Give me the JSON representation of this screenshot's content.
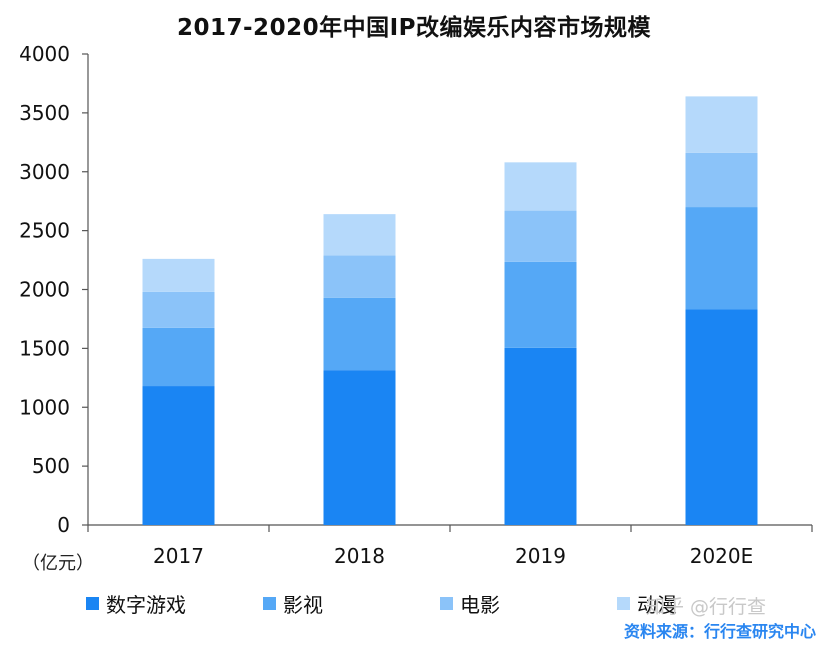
{
  "chart_data": {
    "type": "bar",
    "stacked": true,
    "title": "2017-2020年中国IP改编娱乐内容市场规模",
    "xlabel": "",
    "ylabel": "",
    "unit": "（亿元）",
    "categories": [
      "2017",
      "2018",
      "2019",
      "2020E"
    ],
    "ylim": [
      0,
      4000
    ],
    "yticks": [
      0,
      500,
      1000,
      1500,
      2000,
      2500,
      3000,
      3500,
      4000
    ],
    "grid": false,
    "legend_position": "bottom",
    "series": [
      {
        "name": "数字游戏",
        "color": "#1a85f3",
        "values": [
          1180,
          1315,
          1505,
          1830
        ]
      },
      {
        "name": "影视",
        "color": "#55a8f6",
        "values": [
          495,
          615,
          730,
          870
        ]
      },
      {
        "name": "电影",
        "color": "#8bc3f9",
        "values": [
          305,
          360,
          435,
          460
        ]
      },
      {
        "name": "动漫",
        "color": "#b5d9fb",
        "values": [
          280,
          350,
          410,
          480
        ]
      }
    ]
  },
  "watermark": "知乎 @行行查",
  "source": "资料来源：行行查研究中心"
}
